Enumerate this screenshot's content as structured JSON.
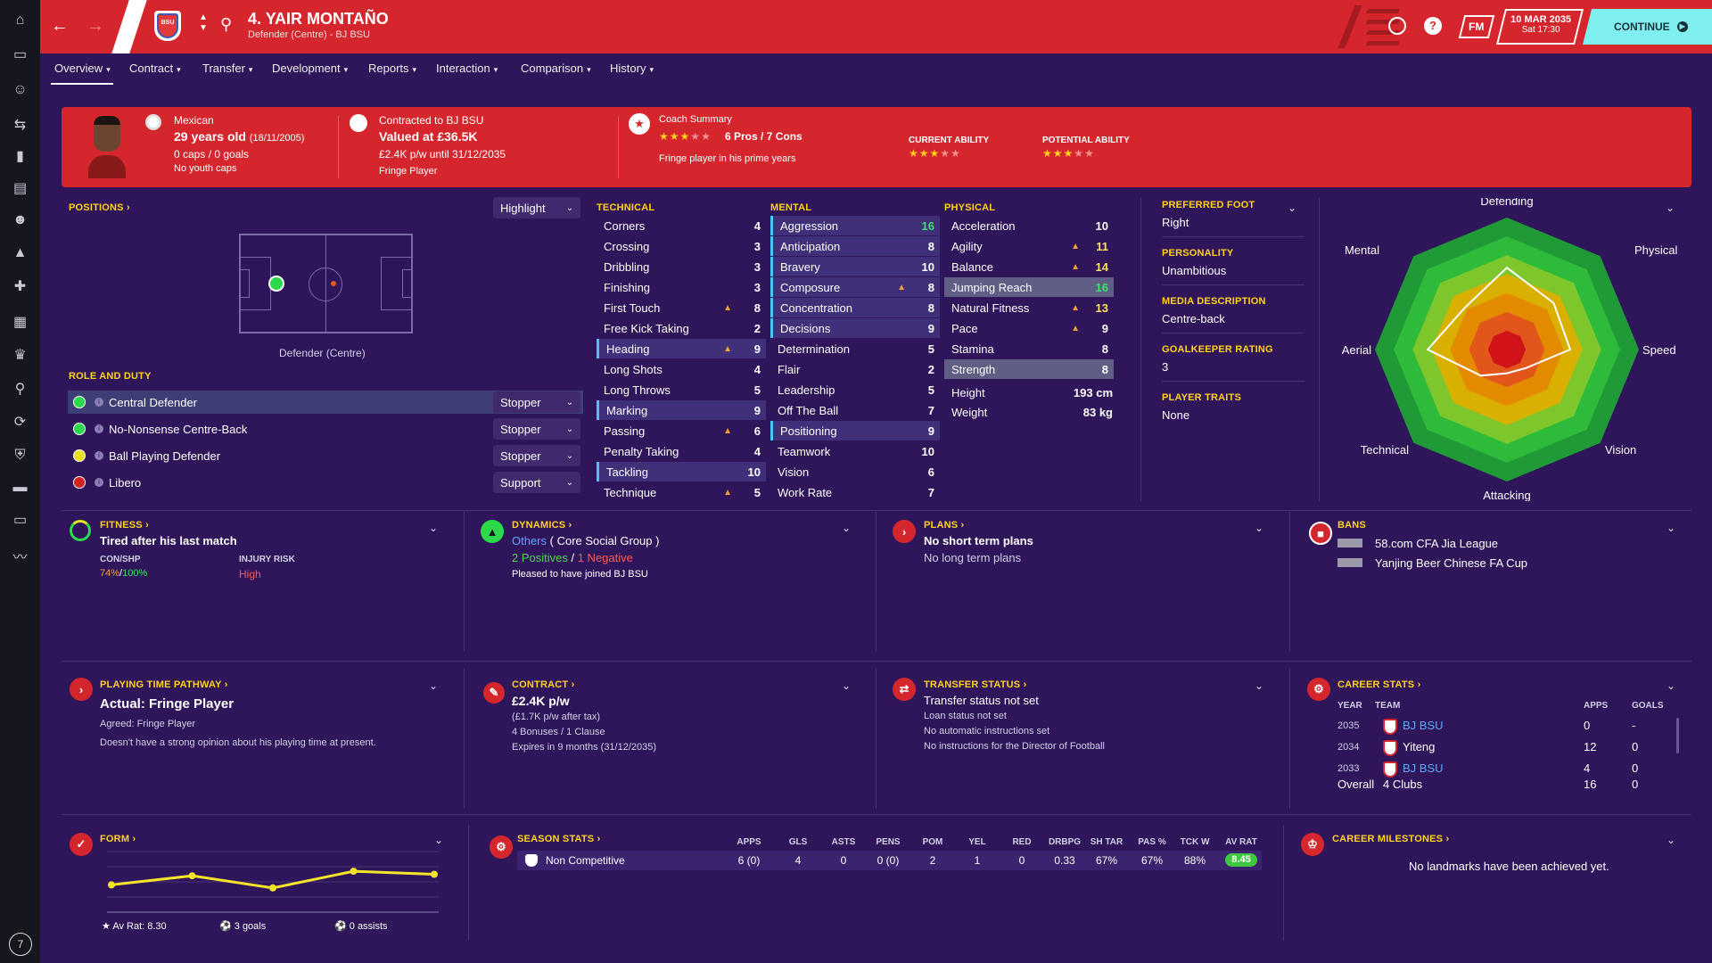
{
  "sidebar": {
    "icons": [
      "home-icon",
      "inbox-icon",
      "squad-icon",
      "tactics-icon",
      "dynamics-icon",
      "staff-icon",
      "scouting-icon",
      "training-icon",
      "medical-icon",
      "schedule-icon",
      "trophy-icon",
      "search-icon",
      "transfers-icon",
      "club-icon",
      "finances-icon",
      "stadium-icon",
      "trends-icon"
    ],
    "badge": "7"
  },
  "header": {
    "title": "4. YAIR MONTAÑO",
    "subtitle": "Defender (Centre) - BJ BSU",
    "club_badge": "BSU",
    "fm_label": "FM",
    "date": "10 MAR 2035",
    "time": "Sat 17:30",
    "continue_label": "CONTINUE"
  },
  "nav": {
    "tabs": [
      "Overview",
      "Contract",
      "Transfer",
      "Development",
      "Reports",
      "Interaction",
      "Comparison",
      "History"
    ]
  },
  "summary": {
    "nationality": "Mexican",
    "age": "29 years old",
    "dob": "(18/11/2005)",
    "caps": "0 caps / 0 goals",
    "youth_caps": "No youth caps",
    "contract_to": "Contracted to BJ BSU",
    "valued": "Valued at £36.5K",
    "wage": "£2.4K p/w until 31/12/2035",
    "status": "Fringe Player",
    "coach_label": "Coach Summary",
    "coach_rating": "6 Pros / 7 Cons",
    "coach_stars": 3,
    "coach_desc": "Fringe player in his prime years",
    "ca_label": "CURRENT ABILITY",
    "ca_stars": 3,
    "pa_label": "POTENTIAL ABILITY",
    "pa_stars": 3
  },
  "positions": {
    "title": "POSITIONS",
    "highlight": "Highlight",
    "caption": "Defender (Centre)",
    "role_title": "ROLE AND DUTY",
    "roles": [
      {
        "name": "Central Defender",
        "duty": "Stopper",
        "dot": "#2bd94a"
      },
      {
        "name": "No-Nonsense Centre-Back",
        "duty": "Stopper",
        "dot": "#2bd94a"
      },
      {
        "name": "Ball Playing Defender",
        "duty": "Stopper",
        "dot": "#e8e020"
      },
      {
        "name": "Libero",
        "duty": "Support",
        "dot": "#d02020"
      }
    ]
  },
  "attributes": {
    "technical_title": "TECHNICAL",
    "technical": [
      [
        "Corners",
        "4"
      ],
      [
        "Crossing",
        "3"
      ],
      [
        "Dribbling",
        "3"
      ],
      [
        "Finishing",
        "3"
      ],
      [
        "First Touch",
        "8"
      ],
      [
        "Free Kick Taking",
        "2"
      ],
      [
        "Heading",
        "9"
      ],
      [
        "Long Shots",
        "4"
      ],
      [
        "Long Throws",
        "5"
      ],
      [
        "Marking",
        "9"
      ],
      [
        "Passing",
        "6"
      ],
      [
        "Penalty Taking",
        "4"
      ],
      [
        "Tackling",
        "10"
      ],
      [
        "Technique",
        "5"
      ]
    ],
    "mental_title": "MENTAL",
    "mental": [
      [
        "Aggression",
        "16"
      ],
      [
        "Anticipation",
        "8"
      ],
      [
        "Bravery",
        "10"
      ],
      [
        "Composure",
        "8"
      ],
      [
        "Concentration",
        "8"
      ],
      [
        "Decisions",
        "9"
      ],
      [
        "Determination",
        "5"
      ],
      [
        "Flair",
        "2"
      ],
      [
        "Leadership",
        "5"
      ],
      [
        "Off The Ball",
        "7"
      ],
      [
        "Positioning",
        "9"
      ],
      [
        "Teamwork",
        "10"
      ],
      [
        "Vision",
        "6"
      ],
      [
        "Work Rate",
        "7"
      ]
    ],
    "physical_title": "PHYSICAL",
    "physical": [
      [
        "Acceleration",
        "10"
      ],
      [
        "Agility",
        "11"
      ],
      [
        "Balance",
        "14"
      ],
      [
        "Jumping Reach",
        "16"
      ],
      [
        "Natural Fitness",
        "13"
      ],
      [
        "Pace",
        "9"
      ],
      [
        "Stamina",
        "8"
      ],
      [
        "Strength",
        "8"
      ]
    ],
    "height_label": "Height",
    "height": "193 cm",
    "weight_label": "Weight",
    "weight": "83 kg"
  },
  "info": {
    "foot_label": "PREFERRED FOOT",
    "foot": "Right",
    "personality_label": "PERSONALITY",
    "personality": "Unambitious",
    "media_label": "MEDIA DESCRIPTION",
    "media": "Centre-back",
    "gk_label": "GOALKEEPER RATING",
    "gk": "3",
    "traits_label": "PLAYER TRAITS",
    "traits": "None"
  },
  "radar": {
    "labels": [
      "Defending",
      "Physical",
      "Speed",
      "Vision",
      "Attacking",
      "Technical",
      "Aerial",
      "Mental"
    ],
    "values": [
      0.62,
      0.5,
      0.48,
      0.2,
      0.18,
      0.28,
      0.6,
      0.45
    ]
  },
  "fitness": {
    "title": "FITNESS",
    "headline": "Tired after his last match",
    "con_label": "CON/SHP",
    "con": "74%",
    "shp": "100%",
    "injury_label": "INJURY RISK",
    "injury": "High"
  },
  "dynamics": {
    "title": "DYNAMICS",
    "group": "Others",
    "group_suffix": "( Core Social Group )",
    "positives": "2 Positives",
    "negatives": "1 Negative",
    "note": "Pleased to have joined BJ BSU"
  },
  "plans": {
    "title": "PLANS",
    "short": "No short term plans",
    "long": "No long term plans"
  },
  "bans": {
    "title": "BANS",
    "items": [
      "58.com CFA Jia League",
      "Yanjing Beer Chinese FA Cup"
    ]
  },
  "pathway": {
    "title": "PLAYING TIME PATHWAY",
    "actual": "Actual: Fringe Player",
    "agreed": "Agreed:  Fringe Player",
    "note": "Doesn't have a strong opinion about his playing time at present."
  },
  "contract": {
    "title": "CONTRACT",
    "wage": "£2.4K p/w",
    "after_tax": "(£1.7K p/w after tax)",
    "bonuses": "4 Bonuses / 1 Clause",
    "expires": "Expires in 9 months (31/12/2035)"
  },
  "transfer": {
    "title": "TRANSFER STATUS",
    "status": "Transfer status not set",
    "loan": "Loan status not set",
    "auto": "No automatic instructions set",
    "dof": "No instructions for the Director of Football"
  },
  "career": {
    "title": "CAREER STATS",
    "headers": [
      "YEAR",
      "TEAM",
      "APPS",
      "GOALS"
    ],
    "rows": [
      [
        "2035",
        "BJ BSU",
        "0",
        "-"
      ],
      [
        "2034",
        "Yiteng",
        "12",
        "0"
      ],
      [
        "2033",
        "BJ BSU",
        "4",
        "0"
      ]
    ],
    "overall_label": "Overall",
    "overall_clubs": "4 Clubs",
    "overall_apps": "16",
    "overall_goals": "0"
  },
  "form": {
    "title": "FORM",
    "av_rat": "Av Rat: 8.30",
    "goals": "3 goals",
    "assists": "0 assists",
    "points": [
      7.8,
      8.4,
      7.6,
      8.7,
      8.5
    ]
  },
  "season": {
    "title": "SEASON STATS",
    "headers": [
      "APPS",
      "GLS",
      "ASTS",
      "PENS",
      "POM",
      "YEL",
      "RED",
      "DRBPG",
      "SH TAR",
      "PAS %",
      "TCK W",
      "AV RAT"
    ],
    "row_label": "Non Competitive",
    "values": [
      "6 (0)",
      "4",
      "0",
      "0 (0)",
      "2",
      "1",
      "0",
      "0.33",
      "67%",
      "67%",
      "88%",
      "8.45"
    ]
  },
  "milestones": {
    "title": "CAREER MILESTONES",
    "text": "No landmarks have been achieved yet."
  }
}
